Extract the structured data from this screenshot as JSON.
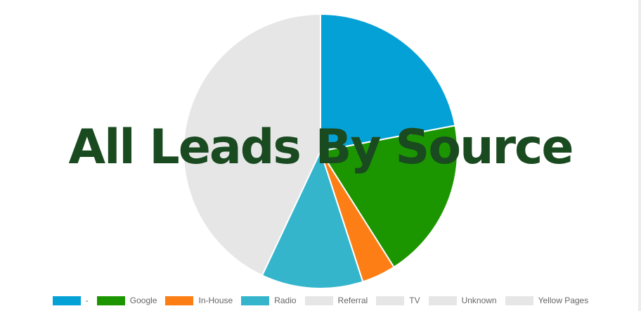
{
  "chart_data": {
    "type": "pie",
    "title": "All Leads By Source",
    "slices": [
      {
        "label": "-",
        "value": 22,
        "color": "#04a1d7"
      },
      {
        "label": "Google",
        "value": 19,
        "color": "#1c9600"
      },
      {
        "label": "In-House",
        "value": 4,
        "color": "#fd7e14"
      },
      {
        "label": "Radio",
        "value": 12,
        "color": "#35b5cc"
      },
      {
        "label": "Referral",
        "value": 0,
        "color": "#e6e6e6"
      },
      {
        "label": "TV",
        "value": 0,
        "color": "#e6e6e6"
      },
      {
        "label": "Unknown",
        "value": 0,
        "color": "#e6e6e6"
      },
      {
        "label": "Yellow Pages",
        "value": 43,
        "color": "#e6e6e6"
      }
    ],
    "legend_position": "bottom"
  }
}
